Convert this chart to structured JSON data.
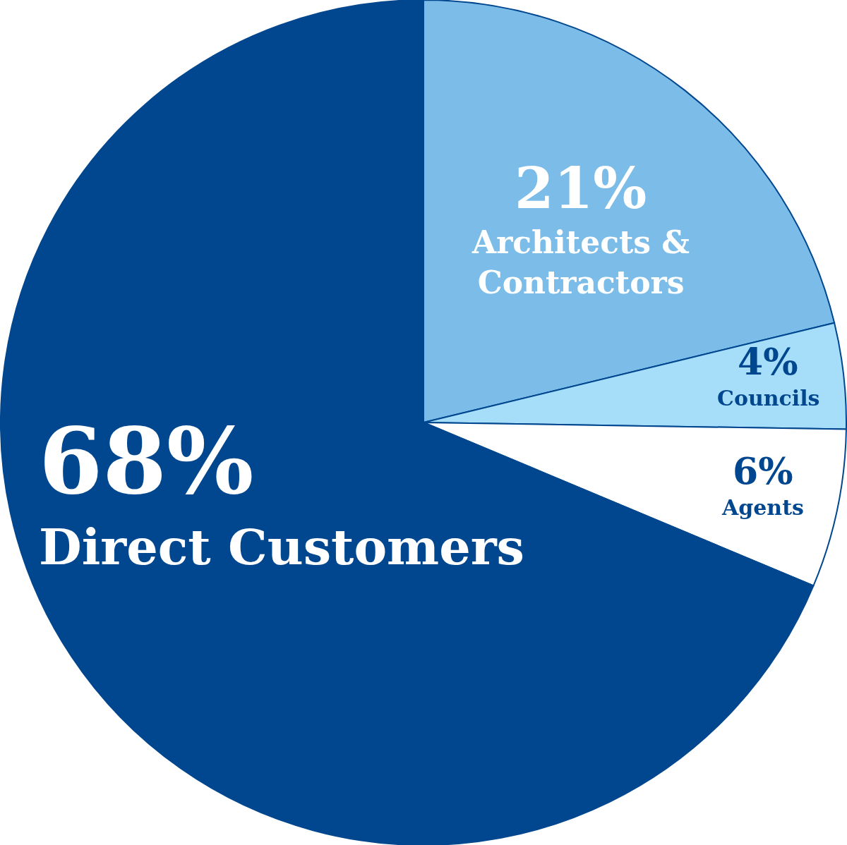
{
  "chart_data": {
    "type": "pie",
    "categories": [
      "Architects & Contractors",
      "Councils",
      "Agents",
      "Direct Customers"
    ],
    "values": [
      21,
      4,
      6,
      68
    ],
    "colors": [
      "#7bbce8",
      "#a6ddf8",
      "#ffffff",
      "#00478f"
    ],
    "value_labels": [
      "21%",
      "4%",
      "6%",
      "68%"
    ],
    "legend": false
  }
}
